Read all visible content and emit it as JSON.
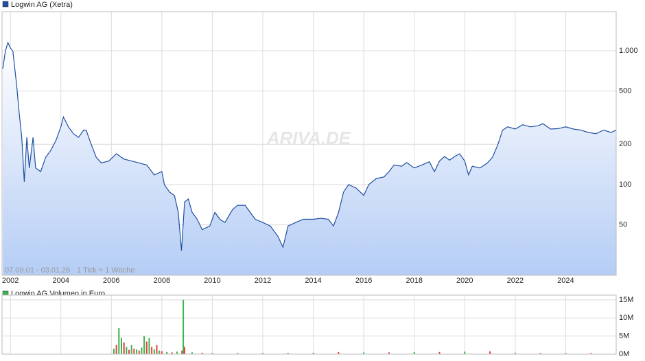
{
  "chart_data": [
    {
      "type": "line",
      "title": "Logwin AG (Xetra)",
      "color": "#1f4fa0",
      "fill": "#bcd2f5",
      "log_scale": true,
      "grid": true,
      "annotations": [
        "07.09.01 - 03.01.26",
        "1 Tick = 1 Woche"
      ],
      "watermark": "ARIVA.DE",
      "xlim": [
        2001.67,
        2026.0
      ],
      "xticks": [
        2002,
        2004,
        2006,
        2008,
        2010,
        2012,
        2014,
        2016,
        2018,
        2020,
        2022,
        2024
      ],
      "ylim": [
        21,
        1960
      ],
      "yticks": [
        50,
        100,
        200,
        500,
        {
          "value": 1000,
          "label": "1.000"
        }
      ],
      "x": [
        2001.7,
        2001.8,
        2001.9,
        2002.0,
        2002.1,
        2002.25,
        2002.35,
        2002.45,
        2002.55,
        2002.65,
        2002.75,
        2002.9,
        2003.0,
        2003.2,
        2003.4,
        2003.6,
        2003.8,
        2004.0,
        2004.1,
        2004.3,
        2004.5,
        2004.7,
        2004.9,
        2005.0,
        2005.2,
        2005.4,
        2005.6,
        2005.9,
        2006.2,
        2006.5,
        2006.8,
        2007.1,
        2007.4,
        2007.7,
        2008.0,
        2008.1,
        2008.3,
        2008.5,
        2008.65,
        2008.78,
        2008.9,
        2009.05,
        2009.2,
        2009.4,
        2009.6,
        2009.9,
        2010.1,
        2010.3,
        2010.5,
        2010.8,
        2011.0,
        2011.3,
        2011.5,
        2011.7,
        2012.0,
        2012.3,
        2012.6,
        2012.8,
        2013.0,
        2013.3,
        2013.6,
        2014.0,
        2014.3,
        2014.6,
        2014.8,
        2015.0,
        2015.2,
        2015.4,
        2015.7,
        2016.0,
        2016.2,
        2016.5,
        2016.8,
        2017.0,
        2017.2,
        2017.5,
        2017.7,
        2018.0,
        2018.3,
        2018.6,
        2018.8,
        2019.0,
        2019.2,
        2019.4,
        2019.6,
        2019.8,
        2020.0,
        2020.15,
        2020.3,
        2020.6,
        2020.9,
        2021.1,
        2021.3,
        2021.5,
        2021.7,
        2022.0,
        2022.3,
        2022.6,
        2022.9,
        2023.1,
        2023.4,
        2023.7,
        2024.0,
        2024.3,
        2024.6,
        2024.9,
        2025.2,
        2025.5,
        2025.8,
        2026.0
      ],
      "values": [
        735,
        990,
        1150,
        1050,
        990,
        550,
        340,
        225,
        105,
        225,
        133,
        225,
        133,
        125,
        160,
        180,
        213,
        270,
        320,
        270,
        240,
        225,
        255,
        255,
        200,
        160,
        145,
        150,
        170,
        155,
        150,
        145,
        140,
        118,
        125,
        100,
        88,
        83,
        62,
        32,
        74,
        78,
        62,
        55,
        46,
        49,
        62,
        55,
        52,
        65,
        70,
        70,
        62,
        55,
        52,
        49,
        41,
        34,
        49,
        52,
        55,
        55,
        56,
        55,
        49,
        62,
        88,
        100,
        94,
        83,
        100,
        111,
        114,
        125,
        140,
        137,
        146,
        133,
        140,
        148,
        125,
        150,
        162,
        152,
        162,
        170,
        150,
        118,
        137,
        133,
        145,
        160,
        196,
        255,
        270,
        260,
        280,
        270,
        275,
        285,
        260,
        262,
        270,
        260,
        255,
        245,
        240,
        255,
        245,
        255
      ]
    },
    {
      "type": "bar",
      "title": "Logwin AG Volumen in Euro",
      "color": "#3cb44b",
      "colors": [
        "#3cb44b",
        "#e04040",
        "#3cb44b",
        "#3cb44b",
        "#e04040",
        "#3cb44b",
        "#e04040",
        "#3cb44b",
        "#e04040",
        "#3cb44b",
        "#e04040",
        "#3cb44b",
        "#3cb44b",
        "#e04040",
        "#3cb44b",
        "#e04040",
        "#3cb44b",
        "#e04040",
        "#3cb44b",
        "#e04040",
        "#3cb44b",
        "#e04040",
        "#3cb44b",
        "#e04040",
        "#3cb44b",
        "#e04040",
        "#3cb44b",
        "#e04040",
        "#3cb44b",
        "#e04040",
        "#3cb44b",
        "#e04040",
        "#3cb44b",
        "#e04040",
        "#3cb44b",
        "#e04040",
        "#3cb44b",
        "#e04040",
        "#3cb44b",
        "#e04040",
        "#3cb44b",
        "#e04040",
        "#3cb44b",
        "#e04040"
      ],
      "xlim": [
        2001.67,
        2026.0
      ],
      "ylim": [
        0,
        16300000
      ],
      "yticks": [
        {
          "value": 0,
          "label": "0M"
        },
        {
          "value": 5000000,
          "label": "5M"
        },
        {
          "value": 10000000,
          "label": "10M"
        },
        {
          "value": 15000000,
          "label": "15M"
        }
      ],
      "x": [
        2006.1,
        2006.2,
        2006.3,
        2006.4,
        2006.5,
        2006.6,
        2006.7,
        2006.8,
        2006.9,
        2007.0,
        2007.1,
        2007.2,
        2007.3,
        2007.4,
        2007.5,
        2007.6,
        2007.7,
        2007.8,
        2007.9,
        2008.0,
        2008.2,
        2008.4,
        2008.6,
        2008.8,
        2008.85,
        2008.9,
        2009.2,
        2009.6,
        2010.0,
        2011.0,
        2012.0,
        2013.0,
        2014.0,
        2015.0,
        2016.0,
        2017.0,
        2018.0,
        2019.0,
        2020.0,
        2021.0,
        2022.0,
        2023.0,
        2024.0,
        2025.0
      ],
      "values": [
        1500000,
        2500000,
        7200000,
        4500000,
        3200000,
        2000000,
        1200000,
        2500000,
        1500000,
        1300000,
        1000000,
        1800000,
        5000000,
        3500000,
        4500000,
        2000000,
        1300000,
        2500000,
        1000000,
        800000,
        600000,
        500000,
        700000,
        1000000,
        15000000,
        2000000,
        500000,
        400000,
        300000,
        300000,
        300000,
        300000,
        400000,
        600000,
        500000,
        500000,
        600000,
        600000,
        700000,
        800000,
        400000,
        300000,
        300000,
        300000
      ]
    }
  ]
}
